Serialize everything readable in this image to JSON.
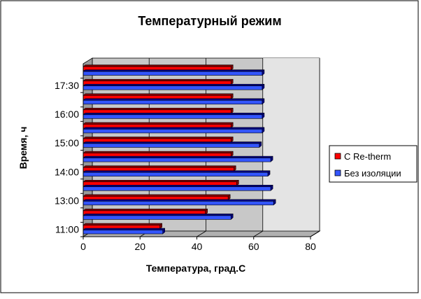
{
  "chart_data": {
    "type": "bar",
    "orientation": "horizontal",
    "three_d": true,
    "title": "Температурный режим",
    "xlabel": "Температура, град.С",
    "ylabel": "Время, ч",
    "xlim": [
      0,
      80
    ],
    "x_ticks": [
      "0",
      "20",
      "40",
      "60",
      "80"
    ],
    "categories": [
      "11:00",
      "",
      "13:00",
      "",
      "14:00",
      "",
      "15:00",
      "",
      "16:00",
      "",
      "17:30",
      ""
    ],
    "series": [
      {
        "name": "С Re-therm",
        "color": "#ff0000",
        "dark": "#800000",
        "values": [
          27,
          43,
          51,
          54,
          53,
          52,
          52,
          52,
          52,
          52,
          52,
          52
        ]
      },
      {
        "name": "Без изоляции",
        "color": "#3355ff",
        "dark": "#000080",
        "values": [
          28,
          52,
          67,
          66,
          65,
          66,
          62,
          63,
          63,
          63,
          63,
          63
        ]
      }
    ],
    "grid": true,
    "legend_position": "right"
  }
}
